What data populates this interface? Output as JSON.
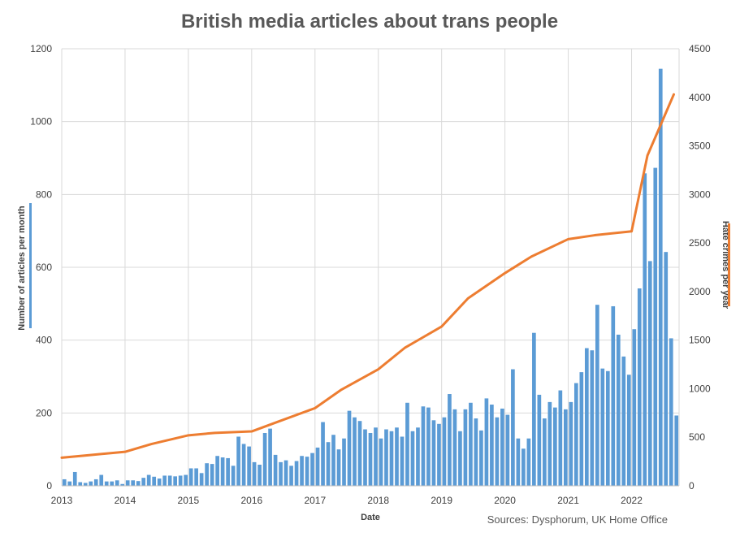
{
  "chart_data": {
    "type": "bar",
    "title": "British media articles about trans people",
    "xlabel": "Date",
    "ylabel": "Number of articles per month",
    "y2label": "Hate crimes per year",
    "source": "Sources: Dysphorum,  UK Home Office",
    "x_ticks": [
      "2013",
      "2014",
      "2015",
      "2016",
      "2017",
      "2018",
      "2019",
      "2020",
      "2021",
      "2022"
    ],
    "y_ticks": [
      "0",
      "200",
      "400",
      "600",
      "800",
      "1000",
      "1200"
    ],
    "y2_ticks": [
      "0",
      "500",
      "1000",
      "1500",
      "2000",
      "2500",
      "3000",
      "3500",
      "4000",
      "4500"
    ],
    "ylim": [
      0,
      1200
    ],
    "y2lim": [
      0,
      4500
    ],
    "x_start": "2013-01",
    "grid": true,
    "colors": {
      "articles": "#5b9bd5",
      "hate_crimes": "#ed7d31"
    },
    "series": [
      {
        "name": "Number of articles per month",
        "type": "bar",
        "values": [
          18,
          12,
          38,
          10,
          8,
          12,
          18,
          30,
          12,
          12,
          15,
          5,
          15,
          15,
          13,
          22,
          30,
          25,
          20,
          28,
          28,
          26,
          28,
          30,
          48,
          48,
          35,
          62,
          60,
          82,
          78,
          76,
          55,
          135,
          115,
          108,
          65,
          58,
          145,
          157,
          85,
          65,
          70,
          55,
          68,
          82,
          80,
          90,
          105,
          175,
          120,
          140,
          100,
          130,
          206,
          188,
          178,
          155,
          145,
          160,
          130,
          155,
          150,
          160,
          135,
          228,
          150,
          160,
          218,
          215,
          180,
          170,
          188,
          252,
          210,
          150,
          210,
          228,
          185,
          152,
          240,
          223,
          188,
          212,
          195,
          320,
          130,
          102,
          130,
          420,
          250,
          185,
          230,
          215,
          262,
          210,
          230,
          282,
          312,
          378,
          372,
          497,
          322,
          315,
          493,
          415,
          355,
          305,
          430,
          542,
          858,
          617,
          873,
          1145,
          642,
          405,
          193
        ]
      },
      {
        "name": "Hate crimes per year",
        "type": "line",
        "axis": "right",
        "x": [
          "2013-01",
          "2013-06",
          "2014-01",
          "2014-06",
          "2015-01",
          "2015-06",
          "2016-01",
          "2016-06",
          "2017-01",
          "2017-06",
          "2018-01",
          "2018-06",
          "2019-01",
          "2019-06",
          "2020-01",
          "2020-06",
          "2021-01",
          "2021-06",
          "2022-01",
          "2022-04",
          "2022-09"
        ],
        "values": [
          290,
          315,
          350,
          430,
          520,
          545,
          560,
          660,
          800,
          990,
          1200,
          1420,
          1640,
          1930,
          2190,
          2360,
          2540,
          2580,
          2620,
          3400,
          4030
        ]
      }
    ]
  }
}
